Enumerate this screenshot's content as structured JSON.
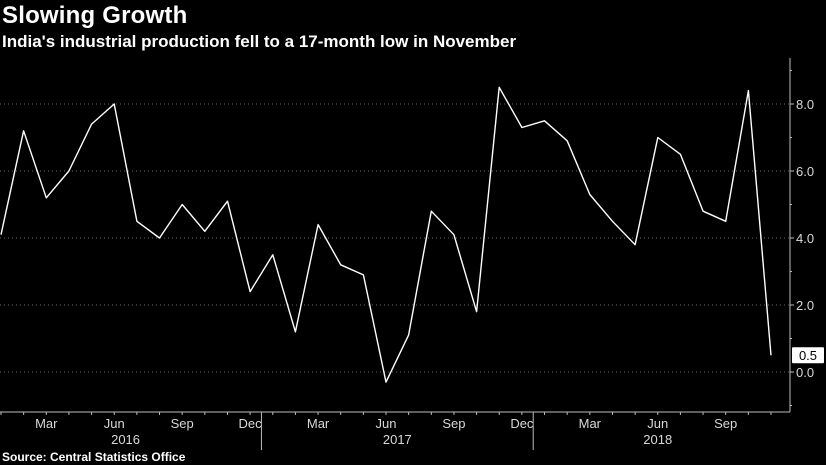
{
  "title": "Slowing Growth",
  "subtitle": "India's industrial production fell to a 17-month low in November",
  "source": "Source: Central Statistics Office",
  "chart_data": {
    "type": "line",
    "title": "Slowing Growth",
    "subtitle": "India's industrial production fell to a 17-month low in November",
    "xlabel": "",
    "ylabel": "",
    "x": [
      "2016-01",
      "2016-02",
      "2016-03",
      "2016-04",
      "2016-05",
      "2016-06",
      "2016-07",
      "2016-08",
      "2016-09",
      "2016-10",
      "2016-11",
      "2016-12",
      "2017-01",
      "2017-02",
      "2017-03",
      "2017-04",
      "2017-05",
      "2017-06",
      "2017-07",
      "2017-08",
      "2017-09",
      "2017-10",
      "2017-11",
      "2017-12",
      "2018-01",
      "2018-02",
      "2018-03",
      "2018-04",
      "2018-05",
      "2018-06",
      "2018-07",
      "2018-08",
      "2018-09",
      "2018-10",
      "2018-11"
    ],
    "series": [
      {
        "values": [
          4.1,
          7.2,
          5.2,
          6.0,
          7.4,
          8.0,
          4.5,
          4.0,
          5.0,
          4.2,
          5.1,
          2.4,
          3.5,
          1.2,
          4.4,
          3.2,
          2.9,
          -0.3,
          1.1,
          4.8,
          4.1,
          1.8,
          8.5,
          7.3,
          7.5,
          6.9,
          5.3,
          4.5,
          3.8,
          7.0,
          6.5,
          4.8,
          4.5,
          8.4,
          0.5
        ]
      }
    ],
    "ylim": [
      -1.2,
      9.5
    ],
    "y_ticks": [
      "8.0",
      "6.0",
      "4.0",
      "2.0",
      "0.0"
    ],
    "x_month_ticks": [
      "Mar",
      "Jun",
      "Sep",
      "Dec",
      "Mar",
      "Jun",
      "Sep",
      "Dec",
      "Mar",
      "Jun",
      "Sep"
    ],
    "x_year_labels": [
      "2016",
      "2017",
      "2018"
    ],
    "last_value_label": "0.5",
    "axis_position": "right",
    "grid": "dotted horizontal",
    "colors": {
      "line": "#ffffff",
      "background": "#000000",
      "grid": "#666666"
    }
  }
}
